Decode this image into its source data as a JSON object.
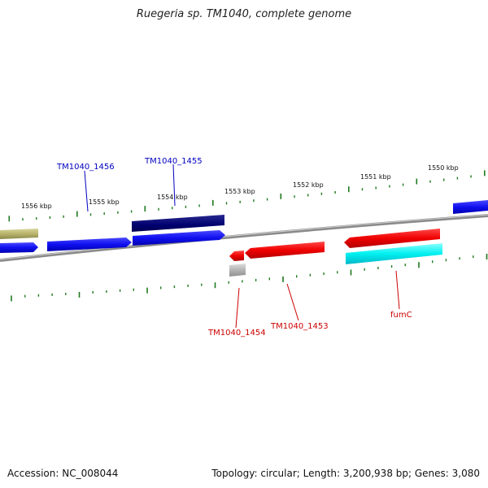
{
  "title": "Ruegeria sp. TM1040, complete genome",
  "footer": {
    "accession": "Accession: NC_008044",
    "summary": "Topology: circular; Length: 3,200,938 bp; Genes: 3,080"
  },
  "colors": {
    "backbone": "#8a8a8a",
    "tick": "#1f7a1f",
    "blue_gene": "#1515f0",
    "navy_gene": "#000070",
    "red_gene": "#f00000",
    "cyan_gene": "#00f0f0",
    "olive_gene": "#b8b46c",
    "grey_gene": "#b0b0b0",
    "blue_label": "#0000c0",
    "red_label": "#cc0000"
  },
  "scale_labels": [
    "1556 kbp",
    "1555 kbp",
    "1554 kbp",
    "1553 kbp",
    "1552 kbp",
    "1551 kbp",
    "1550 kbp"
  ],
  "gene_labels": [
    "TM1040_1456",
    "TM1040_1455",
    "TM1040_1454",
    "TM1040_1453",
    "fumC"
  ]
}
